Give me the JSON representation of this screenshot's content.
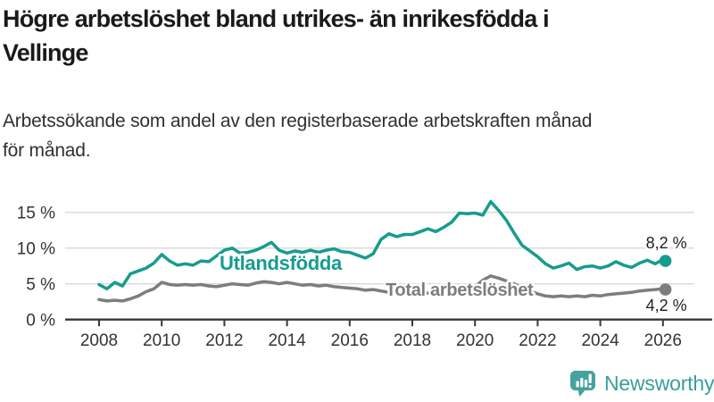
{
  "header": {
    "title": "Högre arbetslöshet bland utrikes- än inrikesfödda i Vellinge",
    "title_lines": [
      "Högre arbetslöshet bland utrikes- än inrikesfödda i",
      "Vellinge"
    ],
    "subtitle": "Arbetssökande som andel av den registerbaserade arbetskraften månad för månad.",
    "subtitle_lines": [
      "Arbetssökande som andel av den registerbaserade arbetskraften månad",
      "för månad."
    ]
  },
  "chart_data": {
    "type": "line",
    "title": "Högre arbetslöshet bland utrikes- än inrikesfödda i Vellinge",
    "subtitle": "Arbetssökande som andel av den registerbaserade arbetskraften månad för månad.",
    "xlabel": "",
    "ylabel": "",
    "unit": "%",
    "xlim": [
      2006.9,
      2027.6
    ],
    "ylim": [
      0,
      17
    ],
    "grid": "horizontal",
    "legend_position": "inline-labels",
    "x_ticks": [
      {
        "v": 2008,
        "label": "2008"
      },
      {
        "v": 2010,
        "label": "2010"
      },
      {
        "v": 2012,
        "label": "2012"
      },
      {
        "v": 2014,
        "label": "2014"
      },
      {
        "v": 2016,
        "label": "2016"
      },
      {
        "v": 2018,
        "label": "2018"
      },
      {
        "v": 2020,
        "label": "2020"
      },
      {
        "v": 2022,
        "label": "2022"
      },
      {
        "v": 2024,
        "label": "2024"
      },
      {
        "v": 2026,
        "label": "2026"
      }
    ],
    "y_ticks": [
      {
        "v": 0,
        "label": "0 %"
      },
      {
        "v": 5,
        "label": "5 %"
      },
      {
        "v": 10,
        "label": "10 %"
      },
      {
        "v": 15,
        "label": "15 %"
      }
    ],
    "series": [
      {
        "name": "Utlandsfödda",
        "color": "#169c8f",
        "end_label": "8,2 %",
        "end_value": 8.2,
        "points": [
          [
            2008.0,
            4.9
          ],
          [
            2008.25,
            4.3
          ],
          [
            2008.5,
            5.2
          ],
          [
            2008.75,
            4.7
          ],
          [
            2009.0,
            6.4
          ],
          [
            2009.25,
            6.8
          ],
          [
            2009.5,
            7.2
          ],
          [
            2009.75,
            7.9
          ],
          [
            2010.0,
            9.1
          ],
          [
            2010.25,
            8.2
          ],
          [
            2010.5,
            7.6
          ],
          [
            2010.75,
            7.8
          ],
          [
            2011.0,
            7.6
          ],
          [
            2011.25,
            8.2
          ],
          [
            2011.5,
            8.1
          ],
          [
            2011.75,
            8.9
          ],
          [
            2012.0,
            9.7
          ],
          [
            2012.25,
            10.0
          ],
          [
            2012.5,
            9.3
          ],
          [
            2012.75,
            9.4
          ],
          [
            2013.0,
            9.7
          ],
          [
            2013.25,
            10.2
          ],
          [
            2013.5,
            10.8
          ],
          [
            2013.75,
            9.7
          ],
          [
            2014.0,
            9.3
          ],
          [
            2014.25,
            9.6
          ],
          [
            2014.5,
            9.4
          ],
          [
            2014.75,
            9.7
          ],
          [
            2015.0,
            9.4
          ],
          [
            2015.25,
            9.7
          ],
          [
            2015.5,
            9.9
          ],
          [
            2015.75,
            9.5
          ],
          [
            2016.0,
            9.4
          ],
          [
            2016.25,
            9.0
          ],
          [
            2016.5,
            8.6
          ],
          [
            2016.75,
            9.2
          ],
          [
            2017.0,
            11.2
          ],
          [
            2017.25,
            12.0
          ],
          [
            2017.5,
            11.6
          ],
          [
            2017.75,
            11.9
          ],
          [
            2018.0,
            11.9
          ],
          [
            2018.25,
            12.3
          ],
          [
            2018.5,
            12.7
          ],
          [
            2018.75,
            12.3
          ],
          [
            2019.0,
            12.9
          ],
          [
            2019.25,
            13.6
          ],
          [
            2019.5,
            14.9
          ],
          [
            2019.75,
            14.8
          ],
          [
            2020.0,
            14.9
          ],
          [
            2020.25,
            14.6
          ],
          [
            2020.5,
            16.5
          ],
          [
            2020.75,
            15.3
          ],
          [
            2021.0,
            13.9
          ],
          [
            2021.25,
            12.1
          ],
          [
            2021.5,
            10.4
          ],
          [
            2021.75,
            9.6
          ],
          [
            2022.0,
            8.8
          ],
          [
            2022.25,
            7.8
          ],
          [
            2022.5,
            7.2
          ],
          [
            2022.75,
            7.5
          ],
          [
            2023.0,
            7.9
          ],
          [
            2023.25,
            7.0
          ],
          [
            2023.5,
            7.4
          ],
          [
            2023.75,
            7.5
          ],
          [
            2024.0,
            7.2
          ],
          [
            2024.25,
            7.5
          ],
          [
            2024.5,
            8.1
          ],
          [
            2024.75,
            7.6
          ],
          [
            2025.0,
            7.3
          ],
          [
            2025.25,
            7.9
          ],
          [
            2025.5,
            8.3
          ],
          [
            2025.75,
            7.8
          ],
          [
            2026.0,
            8.4
          ],
          [
            2026.08,
            8.2
          ]
        ]
      },
      {
        "name": "Total arbetslöshet",
        "color": "#7d7d7d",
        "end_label": "4,2 %",
        "end_value": 4.2,
        "points": [
          [
            2008.0,
            2.8
          ],
          [
            2008.25,
            2.6
          ],
          [
            2008.5,
            2.7
          ],
          [
            2008.75,
            2.6
          ],
          [
            2009.0,
            2.9
          ],
          [
            2009.25,
            3.3
          ],
          [
            2009.5,
            3.9
          ],
          [
            2009.75,
            4.3
          ],
          [
            2010.0,
            5.2
          ],
          [
            2010.25,
            4.9
          ],
          [
            2010.5,
            4.8
          ],
          [
            2010.75,
            4.9
          ],
          [
            2011.0,
            4.8
          ],
          [
            2011.25,
            4.9
          ],
          [
            2011.5,
            4.7
          ],
          [
            2011.75,
            4.6
          ],
          [
            2012.0,
            4.8
          ],
          [
            2012.25,
            5.0
          ],
          [
            2012.5,
            4.9
          ],
          [
            2012.75,
            4.8
          ],
          [
            2013.0,
            5.1
          ],
          [
            2013.25,
            5.3
          ],
          [
            2013.5,
            5.2
          ],
          [
            2013.75,
            5.0
          ],
          [
            2014.0,
            5.2
          ],
          [
            2014.25,
            5.0
          ],
          [
            2014.5,
            4.8
          ],
          [
            2014.75,
            4.9
          ],
          [
            2015.0,
            4.7
          ],
          [
            2015.25,
            4.8
          ],
          [
            2015.5,
            4.6
          ],
          [
            2015.75,
            4.5
          ],
          [
            2016.0,
            4.4
          ],
          [
            2016.25,
            4.3
          ],
          [
            2016.5,
            4.1
          ],
          [
            2016.75,
            4.2
          ],
          [
            2017.0,
            4.0
          ],
          [
            2017.25,
            3.8
          ],
          [
            2017.5,
            3.7
          ],
          [
            2017.75,
            3.8
          ],
          [
            2018.0,
            3.9
          ],
          [
            2018.25,
            3.8
          ],
          [
            2018.5,
            3.7
          ],
          [
            2018.75,
            3.8
          ],
          [
            2019.0,
            3.9
          ],
          [
            2019.25,
            4.0
          ],
          [
            2019.5,
            4.2
          ],
          [
            2019.75,
            4.4
          ],
          [
            2020.0,
            4.6
          ],
          [
            2020.25,
            5.5
          ],
          [
            2020.5,
            6.1
          ],
          [
            2020.75,
            5.8
          ],
          [
            2021.0,
            5.4
          ],
          [
            2021.25,
            5.0
          ],
          [
            2021.5,
            4.4
          ],
          [
            2021.75,
            4.0
          ],
          [
            2022.0,
            3.6
          ],
          [
            2022.25,
            3.3
          ],
          [
            2022.5,
            3.2
          ],
          [
            2022.75,
            3.3
          ],
          [
            2023.0,
            3.2
          ],
          [
            2023.25,
            3.3
          ],
          [
            2023.5,
            3.2
          ],
          [
            2023.75,
            3.4
          ],
          [
            2024.0,
            3.3
          ],
          [
            2024.25,
            3.5
          ],
          [
            2024.5,
            3.6
          ],
          [
            2024.75,
            3.7
          ],
          [
            2025.0,
            3.8
          ],
          [
            2025.25,
            4.0
          ],
          [
            2025.5,
            4.1
          ],
          [
            2025.75,
            4.2
          ],
          [
            2026.0,
            4.3
          ],
          [
            2026.08,
            4.2
          ]
        ]
      }
    ],
    "colors": {
      "grid": "#d9d9d9",
      "axis": "#383838",
      "tick_text": "#333333",
      "value_label": "#222222"
    }
  },
  "footer": {
    "brand": "Newsworthy",
    "brand_color": "#3b9e99",
    "logo_icon": "newsworthy-speech-bubble-bar-chart-icon"
  }
}
